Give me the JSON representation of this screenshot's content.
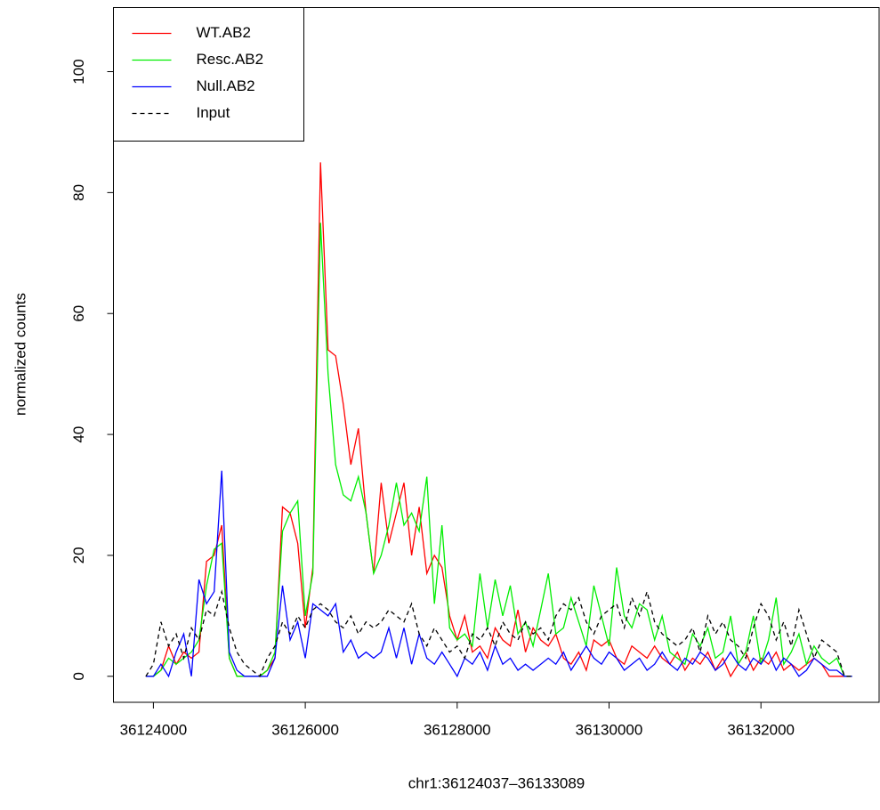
{
  "chart_data": {
    "type": "line",
    "xlabel": "chr1:36124037–36133089",
    "ylabel": "normalized counts",
    "x": [
      36123900,
      36124000,
      36124100,
      36124200,
      36124300,
      36124400,
      36124500,
      36124600,
      36124700,
      36124800,
      36124900,
      36125000,
      36125100,
      36125200,
      36125300,
      36125400,
      36125500,
      36125600,
      36125700,
      36125800,
      36125900,
      36126000,
      36126100,
      36126200,
      36126300,
      36126400,
      36126500,
      36126600,
      36126700,
      36126800,
      36126900,
      36127000,
      36127100,
      36127200,
      36127300,
      36127400,
      36127500,
      36127600,
      36127700,
      36127800,
      36127900,
      36128000,
      36128100,
      36128200,
      36128300,
      36128400,
      36128500,
      36128600,
      36128700,
      36128800,
      36128900,
      36129000,
      36129100,
      36129200,
      36129300,
      36129400,
      36129500,
      36129600,
      36129700,
      36129800,
      36129900,
      36130000,
      36130100,
      36130200,
      36130300,
      36130400,
      36130500,
      36130600,
      36130700,
      36130800,
      36130900,
      36131000,
      36131100,
      36131200,
      36131300,
      36131400,
      36131500,
      36131600,
      36131700,
      36131800,
      36131900,
      36132000,
      36132100,
      36132200,
      36132300,
      36132400,
      36132500,
      36132600,
      36132700,
      36132800,
      36132900,
      36133000,
      36133100,
      36133200
    ],
    "series": [
      {
        "name": "WT.AB2",
        "color": "#ff0000",
        "dash": false,
        "values": [
          0,
          0,
          1,
          5,
          2,
          4,
          3,
          4,
          19,
          20,
          25,
          3,
          0,
          0,
          0,
          0,
          1,
          3,
          28,
          27,
          22,
          8,
          18,
          85,
          54,
          53,
          45,
          35,
          41,
          27,
          17,
          32,
          22,
          27,
          32,
          20,
          28,
          17,
          20,
          18,
          10,
          6,
          10,
          4,
          5,
          3,
          8,
          6,
          5,
          11,
          4,
          8,
          6,
          5,
          7,
          3,
          2,
          4,
          1,
          6,
          5,
          6,
          3,
          2,
          5,
          4,
          3,
          5,
          3,
          2,
          4,
          1,
          3,
          2,
          4,
          1,
          3,
          0,
          2,
          4,
          1,
          3,
          2,
          4,
          1,
          2,
          1,
          2,
          3,
          2,
          0,
          0,
          0,
          0
        ]
      },
      {
        "name": "Resc.AB2",
        "color": "#00ee00",
        "dash": false,
        "values": [
          0,
          0,
          1,
          3,
          2,
          3,
          4,
          6,
          15,
          21,
          22,
          3,
          0,
          0,
          0,
          0,
          1,
          4,
          24,
          27,
          29,
          10,
          17,
          75,
          50,
          35,
          30,
          29,
          33,
          27,
          17,
          20,
          25,
          32,
          25,
          27,
          24,
          33,
          12,
          25,
          8,
          6,
          7,
          5,
          17,
          8,
          16,
          10,
          15,
          7,
          9,
          5,
          11,
          17,
          7,
          8,
          13,
          9,
          5,
          15,
          10,
          5,
          18,
          10,
          8,
          12,
          11,
          6,
          10,
          4,
          3,
          2,
          7,
          5,
          8,
          3,
          4,
          10,
          2,
          4,
          10,
          2,
          6,
          13,
          2,
          4,
          7,
          2,
          5,
          3,
          2,
          3,
          0,
          0
        ]
      },
      {
        "name": "Null.AB2",
        "color": "#0000ff",
        "dash": false,
        "values": [
          0,
          0,
          2,
          0,
          4,
          7,
          0,
          16,
          12,
          14,
          34,
          4,
          1,
          0,
          0,
          0,
          0,
          3,
          15,
          6,
          9,
          3,
          12,
          11,
          10,
          12,
          4,
          6,
          3,
          4,
          3,
          4,
          8,
          3,
          8,
          2,
          7,
          3,
          2,
          4,
          2,
          0,
          3,
          2,
          4,
          1,
          5,
          2,
          3,
          1,
          2,
          1,
          2,
          3,
          2,
          4,
          1,
          3,
          5,
          3,
          2,
          4,
          3,
          1,
          2,
          3,
          1,
          2,
          4,
          2,
          1,
          3,
          2,
          4,
          3,
          1,
          2,
          4,
          2,
          1,
          3,
          2,
          4,
          1,
          3,
          2,
          0,
          1,
          3,
          2,
          1,
          1,
          0,
          0
        ]
      },
      {
        "name": "Input",
        "color": "#000000",
        "dash": true,
        "values": [
          0,
          2,
          9,
          5,
          7,
          3,
          8,
          6,
          11,
          10,
          14,
          8,
          4,
          2,
          1,
          0,
          3,
          5,
          9,
          7,
          10,
          8,
          11,
          12,
          11,
          9,
          8,
          10,
          7,
          9,
          8,
          9,
          11,
          10,
          9,
          12,
          7,
          5,
          8,
          6,
          4,
          5,
          3,
          7,
          6,
          8,
          5,
          9,
          7,
          6,
          9,
          7,
          8,
          6,
          10,
          12,
          11,
          13,
          9,
          7,
          10,
          11,
          12,
          8,
          13,
          10,
          14,
          9,
          7,
          6,
          5,
          6,
          8,
          4,
          10,
          7,
          9,
          6,
          5,
          3,
          8,
          12,
          10,
          6,
          9,
          5,
          11,
          7,
          3,
          6,
          5,
          4,
          0,
          0
        ]
      }
    ],
    "xlim": [
      36123474,
      36133556
    ],
    "ylim": [
      -4.3,
      110.6
    ],
    "xticks": [
      36124000,
      36126000,
      36128000,
      36130000,
      36132000
    ],
    "yticks": [
      0,
      20,
      40,
      60,
      80,
      100
    ],
    "legend": "top-left"
  }
}
